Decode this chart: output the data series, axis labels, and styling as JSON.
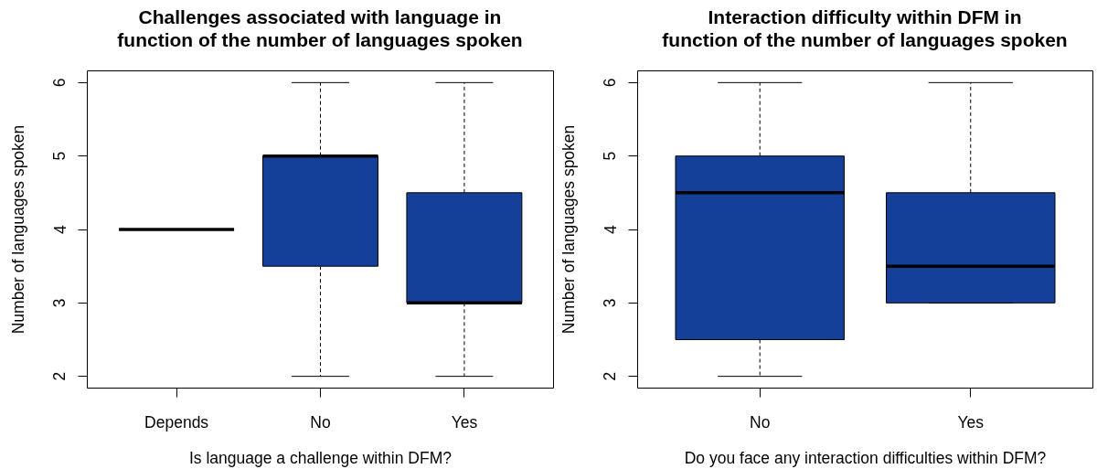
{
  "chart_data": [
    {
      "type": "box",
      "title": "Challenges associated with language in\nfunction of the number of languages spoken",
      "xlabel": "Is language a challenge within DFM?",
      "ylabel": "Number of languages spoken",
      "categories": [
        "Depends",
        "No",
        "Yes"
      ],
      "color": "#15409a",
      "ylim": [
        1.84,
        6.16
      ],
      "yticks": [
        2,
        3,
        4,
        5,
        6
      ],
      "boxes": [
        {
          "low": 4,
          "q1": 4,
          "median": 4,
          "q3": 4,
          "high": 4
        },
        {
          "low": 2,
          "q1": 3.5,
          "median": 5,
          "q3": 5,
          "high": 6
        },
        {
          "low": 2,
          "q1": 3,
          "median": 3,
          "q3": 4.5,
          "high": 6
        }
      ]
    },
    {
      "type": "box",
      "title": "Interaction difficulty within DFM in\nfunction of the number of languages spoken",
      "xlabel": "Do you face any interaction difficulties within DFM?",
      "ylabel": "Number of languages spoken",
      "categories": [
        "No",
        "Yes"
      ],
      "color": "#15409a",
      "ylim": [
        1.84,
        6.16
      ],
      "yticks": [
        2,
        3,
        4,
        5,
        6
      ],
      "boxes": [
        {
          "low": 2,
          "q1": 2.5,
          "median": 4.5,
          "q3": 5,
          "high": 6
        },
        {
          "low": 3,
          "q1": 3,
          "median": 3.5,
          "q3": 4.5,
          "high": 6
        }
      ]
    }
  ]
}
